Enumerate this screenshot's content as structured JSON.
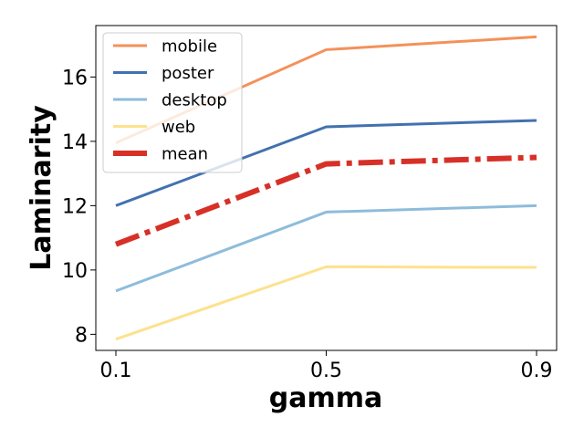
{
  "chart_data": {
    "type": "line",
    "title": "",
    "xlabel": "gamma",
    "ylabel": "Laminarity",
    "x": [
      0.1,
      0.5,
      0.9
    ],
    "x_tick_labels": [
      "0.1",
      "0.5",
      "0.9"
    ],
    "y_ticks": [
      8,
      10,
      12,
      14,
      16
    ],
    "y_tick_labels": [
      "8",
      "10",
      "12",
      "14",
      "16"
    ],
    "ylim": [
      7.5,
      17.6
    ],
    "grid": false,
    "legend_position": "top-left",
    "series": [
      {
        "name": "mobile",
        "values": [
          13.95,
          16.85,
          17.25
        ],
        "color": "#f4915a",
        "style": "solid"
      },
      {
        "name": "poster",
        "values": [
          12.0,
          14.45,
          14.65
        ],
        "color": "#4271b0",
        "style": "solid"
      },
      {
        "name": "desktop",
        "values": [
          9.35,
          11.8,
          12.0
        ],
        "color": "#8ebcdb",
        "style": "solid"
      },
      {
        "name": "web",
        "values": [
          7.85,
          10.1,
          10.08
        ],
        "color": "#fde18d",
        "style": "solid"
      },
      {
        "name": "mean",
        "values": [
          10.8,
          13.3,
          13.5
        ],
        "color": "#d73027",
        "style": "dashdot"
      }
    ]
  }
}
